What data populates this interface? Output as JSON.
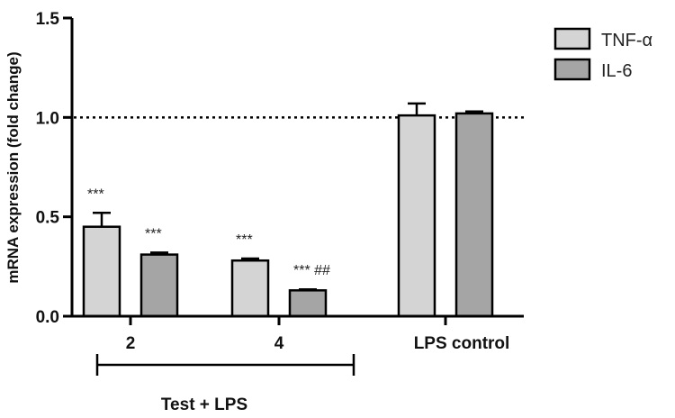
{
  "chart_data": {
    "type": "bar",
    "ylabel": "mRNA expression (fold change)",
    "ylim": [
      0,
      1.5
    ],
    "yticks": [
      "0.0",
      "0.5",
      "1.0",
      "1.5"
    ],
    "categories": [
      "2",
      "4",
      "LPS control"
    ],
    "series": [
      {
        "name": "TNF-α",
        "values": [
          0.45,
          0.28,
          1.01
        ],
        "errors": [
          0.07,
          0.01,
          0.06
        ],
        "color": "#d4d4d4"
      },
      {
        "name": "IL-6",
        "values": [
          0.31,
          0.13,
          1.02
        ],
        "errors": [
          0.01,
          0.005,
          0.01
        ],
        "color": "#a5a5a5"
      }
    ],
    "reference_line": 1.0,
    "significance": [
      [
        "***",
        "***"
      ],
      [
        "***",
        "*** ##"
      ],
      [
        "",
        ""
      ]
    ],
    "group_label": "Test + LPS",
    "legend_position": "top-right"
  }
}
